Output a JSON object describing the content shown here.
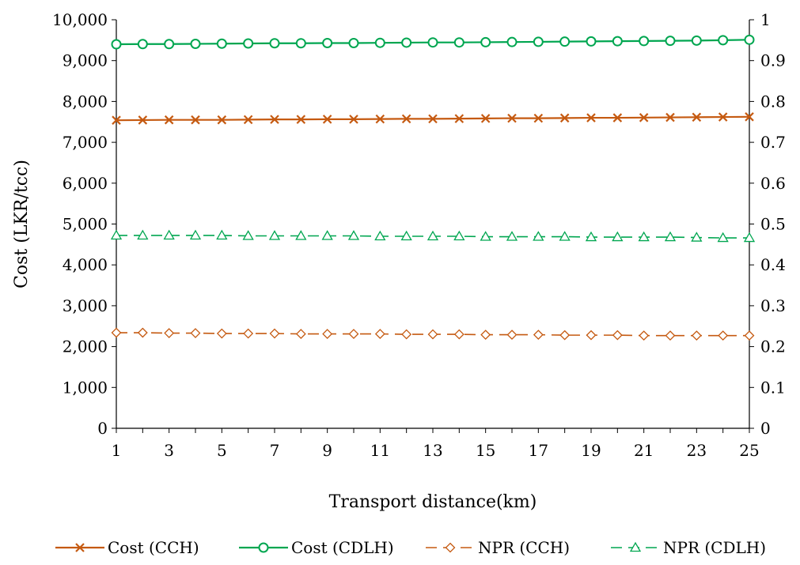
{
  "chart_data": {
    "type": "line",
    "xlabel": "Transport distance(km)",
    "ylabel": "Cost (LKR/tcc)",
    "x": [
      1,
      2,
      3,
      4,
      5,
      6,
      7,
      8,
      9,
      10,
      11,
      12,
      13,
      14,
      15,
      16,
      17,
      18,
      19,
      20,
      21,
      22,
      23,
      24,
      25
    ],
    "x_tick_labels": [
      "1",
      "3",
      "5",
      "7",
      "9",
      "11",
      "13",
      "15",
      "17",
      "19",
      "21",
      "23",
      "25"
    ],
    "ylim": [
      0,
      10000
    ],
    "y_tick_labels": [
      "0",
      "1,000",
      "2,000",
      "3,000",
      "4,000",
      "5,000",
      "6,000",
      "7,000",
      "8,000",
      "9,000",
      "10,000"
    ],
    "y2lim": [
      0,
      1
    ],
    "y2_tick_labels": [
      "0",
      "0.1",
      "0.2",
      "0.3",
      "0.4",
      "0.5",
      "0.6",
      "0.7",
      "0.8",
      "0.9",
      "1"
    ],
    "grid": false,
    "legend": "bottom",
    "series": [
      {
        "name": "Cost (CCH)",
        "axis": "left",
        "color": "#C55A11",
        "marker": "x",
        "dash": "solid",
        "values": [
          7540,
          7545,
          7550,
          7550,
          7550,
          7555,
          7560,
          7560,
          7565,
          7565,
          7570,
          7575,
          7575,
          7580,
          7585,
          7590,
          7590,
          7595,
          7600,
          7600,
          7605,
          7610,
          7615,
          7620,
          7625
        ]
      },
      {
        "name": "Cost (CDLH)",
        "axis": "left",
        "color": "#00A650",
        "marker": "circle",
        "dash": "solid",
        "values": [
          9400,
          9405,
          9405,
          9410,
          9415,
          9420,
          9425,
          9425,
          9430,
          9430,
          9435,
          9440,
          9445,
          9445,
          9450,
          9455,
          9460,
          9465,
          9470,
          9475,
          9480,
          9485,
          9490,
          9500,
          9510
        ]
      },
      {
        "name": "NPR (CCH)",
        "axis": "right",
        "color": "#C55A11",
        "marker": "diamond",
        "dash": "dashed",
        "values": [
          0.234,
          0.234,
          0.233,
          0.233,
          0.232,
          0.232,
          0.232,
          0.231,
          0.231,
          0.231,
          0.231,
          0.23,
          0.23,
          0.23,
          0.229,
          0.229,
          0.229,
          0.228,
          0.228,
          0.228,
          0.227,
          0.227,
          0.227,
          0.227,
          0.227
        ]
      },
      {
        "name": "NPR (CDLH)",
        "axis": "right",
        "color": "#00A650",
        "marker": "triangle",
        "dash": "dashed",
        "values": [
          0.472,
          0.472,
          0.472,
          0.472,
          0.472,
          0.471,
          0.471,
          0.471,
          0.471,
          0.471,
          0.47,
          0.47,
          0.47,
          0.47,
          0.469,
          0.469,
          0.469,
          0.469,
          0.468,
          0.468,
          0.468,
          0.468,
          0.467,
          0.466,
          0.466
        ]
      }
    ]
  }
}
